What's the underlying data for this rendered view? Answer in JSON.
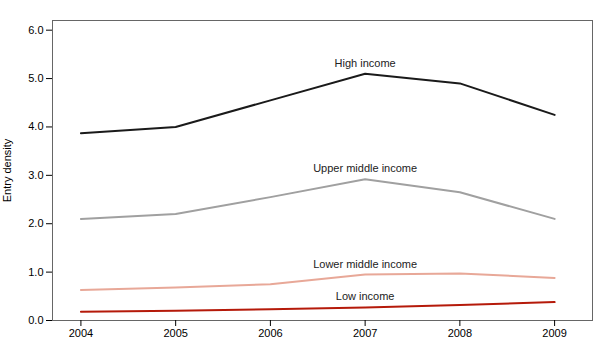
{
  "chart_data": {
    "type": "line",
    "x": [
      2004,
      2005,
      2006,
      2007,
      2008,
      2009
    ],
    "series": [
      {
        "name": "High income",
        "color": "#1a1a1a",
        "values": [
          3.87,
          4.0,
          4.55,
          5.1,
          4.9,
          4.25
        ]
      },
      {
        "name": "Upper middle income",
        "color": "#a0a0a0",
        "values": [
          2.1,
          2.2,
          2.55,
          2.92,
          2.65,
          2.1
        ]
      },
      {
        "name": "Lower middle income",
        "color": "#e8a898",
        "values": [
          0.63,
          0.68,
          0.75,
          0.95,
          0.97,
          0.88
        ]
      },
      {
        "name": "Low income",
        "color": "#b51a0a",
        "values": [
          0.18,
          0.2,
          0.23,
          0.27,
          0.32,
          0.38
        ]
      }
    ],
    "ylabel": "Entry density",
    "xlim": [
      2003.7,
      2009.4
    ],
    "ylim": [
      0,
      6.2
    ],
    "xticks": [
      2004,
      2005,
      2006,
      2007,
      2008,
      2009
    ],
    "yticks": [
      0,
      1,
      2,
      3,
      4,
      5,
      6
    ],
    "grid": false
  }
}
